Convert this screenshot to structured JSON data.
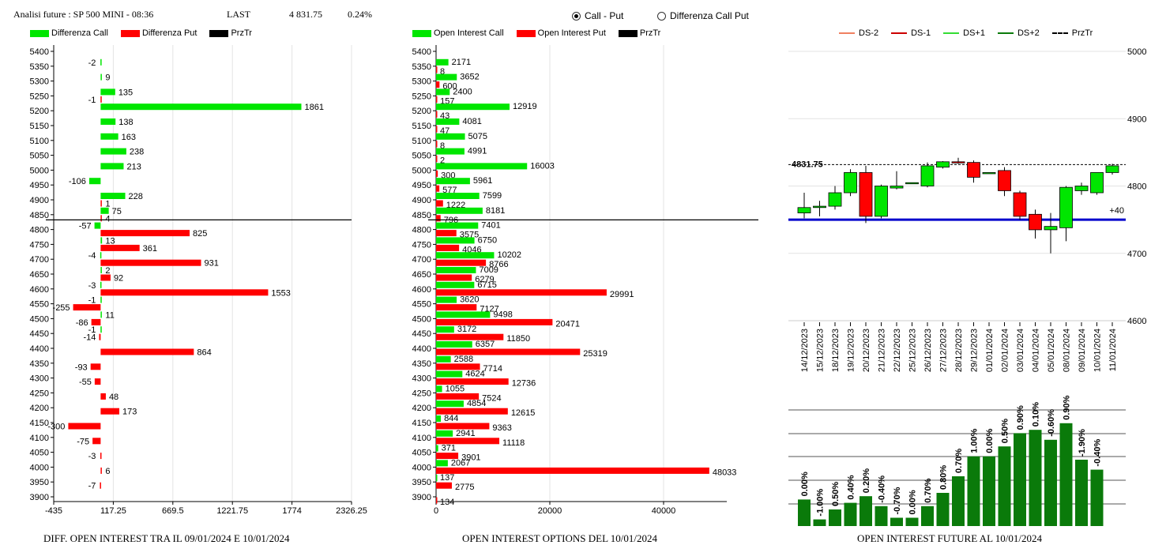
{
  "header": {
    "title": "Analisi future : SP 500 MINI - 08:36",
    "last_label": "LAST",
    "last_value": "4 831.75",
    "change": "0.24%"
  },
  "toggle": {
    "options": [
      {
        "label": "Call - Put",
        "selected": true
      },
      {
        "label": "Differenza Call Put",
        "selected": false
      }
    ]
  },
  "colors": {
    "call": "#00e600",
    "put": "#ff0000",
    "up": "#00e600",
    "down": "#ff0000",
    "future_bar": "#0a7a0a",
    "pivot": "#0000cc"
  },
  "chart_data": [
    {
      "type": "bar",
      "orientation": "horizontal",
      "title": "DIFF. OPEN INTEREST TRA IL 09/01/2024 E 10/01/2024",
      "legend": [
        "Differenza Call",
        "Differenza Put",
        "PrzTr"
      ],
      "categories": [
        "5400",
        "5350",
        "5300",
        "5250",
        "5200",
        "5150",
        "5100",
        "5050",
        "5000",
        "4950",
        "4900",
        "4850",
        "4800",
        "4750",
        "4700",
        "4650",
        "4600",
        "4550",
        "4500",
        "4450",
        "4400",
        "4350",
        "4300",
        "4250",
        "4200",
        "4150",
        "4100",
        "4050",
        "4000",
        "3950",
        "3900"
      ],
      "series": [
        {
          "name": "Differenza Call",
          "values": [
            null,
            -2,
            9,
            135,
            1861,
            138,
            163,
            238,
            213,
            -106,
            228,
            75,
            -57,
            13,
            -4,
            2,
            -3,
            -1,
            11,
            -1,
            null,
            null,
            null,
            null,
            null,
            null,
            null,
            null,
            null,
            null,
            null
          ]
        },
        {
          "name": "Differenza Put",
          "values": [
            null,
            null,
            null,
            -1,
            null,
            null,
            null,
            null,
            null,
            null,
            1,
            4,
            825,
            361,
            931,
            92,
            1553,
            -255,
            -86,
            -14,
            864,
            -93,
            -55,
            48,
            173,
            -300,
            -75,
            -3,
            6,
            -7,
            null
          ]
        }
      ],
      "call_labels": [
        "",
        "-2",
        "9",
        "135",
        "1861",
        "138",
        "163",
        "238",
        "213",
        "-106",
        "228",
        "75",
        "-57",
        "13",
        "-4",
        "2",
        "-3",
        "-1",
        "11",
        "-1",
        "",
        "",
        "",
        "",
        "",
        "",
        "",
        "",
        "",
        "",
        ""
      ],
      "put_labels": [
        "",
        "",
        "",
        "-1",
        "",
        "",
        "",
        "",
        "",
        "",
        "1",
        "4",
        "825",
        "361",
        "931",
        "92",
        "1553",
        "-255",
        "-86",
        "-14",
        "864",
        "-93",
        "-55",
        "48",
        "173",
        "-300",
        "-75",
        "-3",
        "6",
        "-7",
        ""
      ],
      "price_level": "4831.75",
      "xticks": [
        "-435",
        "117.25",
        "669.5",
        "1221.75",
        "1774",
        "2326.25"
      ],
      "xlim": [
        -435,
        2326.25
      ]
    },
    {
      "type": "bar",
      "orientation": "horizontal",
      "title": "OPEN INTEREST OPTIONS DEL 10/01/2024",
      "legend": [
        "Open Interest Call",
        "Open Interest Put",
        "PrzTr"
      ],
      "categories": [
        "5400",
        "5350",
        "5300",
        "5250",
        "5200",
        "5150",
        "5100",
        "5050",
        "5000",
        "4950",
        "4900",
        "4850",
        "4800",
        "4750",
        "4700",
        "4650",
        "4600",
        "4550",
        "4500",
        "4450",
        "4400",
        "4350",
        "4300",
        "4250",
        "4200",
        "4150",
        "4100",
        "4050",
        "4000",
        "3950",
        "3900"
      ],
      "series": [
        {
          "name": "Open Interest Call",
          "values": [
            null,
            2171,
            3652,
            2400,
            12919,
            4081,
            5075,
            4991,
            16003,
            5961,
            7599,
            8181,
            7401,
            6750,
            10202,
            7009,
            6715,
            3620,
            9498,
            3172,
            6357,
            2588,
            4624,
            1055,
            4854,
            844,
            2941,
            371,
            2067,
            137,
            null
          ]
        },
        {
          "name": "Open Interest Put",
          "values": [
            null,
            8,
            600,
            157,
            43,
            47,
            8,
            2,
            300,
            577,
            1222,
            796,
            3575,
            4046,
            8766,
            6279,
            29991,
            7127,
            20471,
            11850,
            25319,
            7714,
            12736,
            7524,
            12615,
            9363,
            11118,
            3901,
            48033,
            2775,
            134
          ]
        }
      ],
      "call_labels": [
        "",
        "2171",
        "3652",
        "2400",
        "12919",
        "4081",
        "5075",
        "4991",
        "16003",
        "5961",
        "7599",
        "8181",
        "7401",
        "6750",
        "10202",
        "7009",
        "6715",
        "3620",
        "9498",
        "3172",
        "6357",
        "2588",
        "4624",
        "1055",
        "4854",
        "844",
        "2941",
        "371",
        "2067",
        "137",
        ""
      ],
      "put_labels": [
        "",
        "8",
        "600",
        "157",
        "43",
        "47",
        "8",
        "2",
        "300",
        "577",
        "1222",
        "796",
        "3575",
        "4046",
        "8766",
        "6279",
        "29991",
        "7127",
        "20471",
        "11850",
        "25319",
        "7714",
        "12736",
        "7524",
        "12615",
        "9363",
        "11118",
        "3901",
        "48033",
        "2775",
        "134"
      ],
      "price_level": "4831.75",
      "xticks": [
        "0",
        "20000",
        "40000"
      ],
      "xlim": [
        0,
        50000
      ]
    },
    {
      "type": "candlestick",
      "legend": [
        "DS-2",
        "DS-1",
        "DS+1",
        "DS+2",
        "PrzTr"
      ],
      "dates": [
        "14/12/2023",
        "15/12/2023",
        "18/12/2023",
        "19/12/2023",
        "20/12/2023",
        "21/12/2023",
        "22/12/2023",
        "25/12/2023",
        "26/12/2023",
        "27/12/2023",
        "28/12/2023",
        "29/12/2023",
        "01/01/2024",
        "02/01/2024",
        "03/01/2024",
        "04/01/2024",
        "05/01/2024",
        "08/01/2024",
        "09/01/2024",
        "10/01/2024",
        "11/01/2024"
      ],
      "ohlc": [
        [
          4760,
          4790,
          4752,
          4768
        ],
        [
          4768,
          4778,
          4755,
          4770
        ],
        [
          4770,
          4800,
          4765,
          4790
        ],
        [
          4790,
          4825,
          4785,
          4820
        ],
        [
          4820,
          4830,
          4745,
          4755
        ],
        [
          4755,
          4802,
          4752,
          4800
        ],
        [
          4797,
          4822,
          4795,
          4800
        ],
        [
          4805,
          4805,
          4805,
          4805
        ],
        [
          4800,
          4835,
          4798,
          4830
        ],
        [
          4828,
          4837,
          4826,
          4836
        ],
        [
          4836,
          4842,
          4833,
          4835
        ],
        [
          4835,
          4838,
          4805,
          4813
        ],
        [
          4820,
          4820,
          4820,
          4820
        ],
        [
          4823,
          4828,
          4785,
          4793
        ],
        [
          4790,
          4793,
          4750,
          4755
        ],
        [
          4758,
          4765,
          4722,
          4735
        ],
        [
          4735,
          4760,
          4700,
          4740
        ],
        [
          4738,
          4800,
          4718,
          4798
        ],
        [
          4793,
          4805,
          4787,
          4800
        ],
        [
          4790,
          4820,
          4787,
          4820
        ],
        [
          4820,
          4833,
          4817,
          4830
        ]
      ],
      "price_label": "4831.75",
      "pivot_label": "+40",
      "yticks": [
        "5000",
        "4900",
        "4800",
        "4700",
        "4600"
      ],
      "ylim": [
        4600,
        5000
      ]
    },
    {
      "type": "bar",
      "title": "OPEN INTEREST FUTURE AL 10/01/2024",
      "categories": [
        "14/12/2023",
        "15/12/2023",
        "18/12/2023",
        "19/12/2023",
        "20/12/2023",
        "21/12/2023",
        "22/12/2023",
        "25/12/2023",
        "26/12/2023",
        "27/12/2023",
        "28/12/2023",
        "29/12/2023",
        "01/01/2024",
        "02/01/2024",
        "03/01/2024",
        "04/01/2024",
        "05/01/2024",
        "08/01/2024",
        "09/01/2024",
        "10/01/2024",
        "11/01/2024"
      ],
      "values": [
        0.8,
        0.2,
        0.5,
        0.7,
        0.9,
        0.6,
        0.25,
        0.25,
        0.6,
        1.0,
        1.5,
        2.1,
        2.1,
        2.4,
        2.8,
        2.9,
        2.6,
        3.1,
        2.0,
        1.7
      ],
      "labels": [
        "0.00%",
        "-1.00%",
        "0.50%",
        "0.40%",
        "0.20%",
        "-0.40%",
        "-0.70%",
        "0.00%",
        "0.70%",
        "0.80%",
        "0.70%",
        "1.00%",
        "0.00%",
        "0.50%",
        "0.90%",
        "0.10%",
        "-0.60%",
        "0.90%",
        "-1.90%",
        "-0.40%"
      ]
    }
  ]
}
